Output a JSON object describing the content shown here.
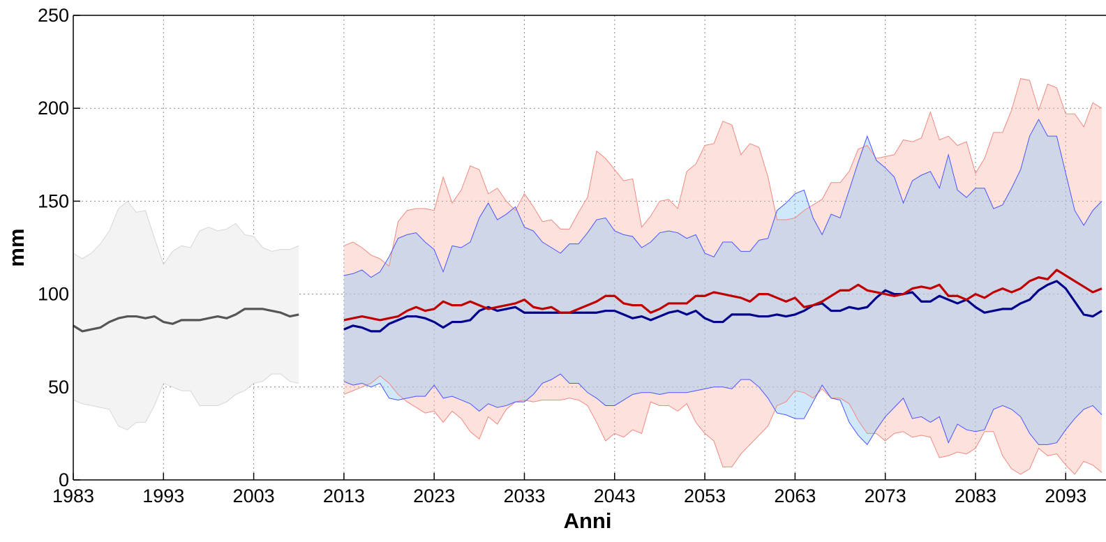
{
  "chart_data": {
    "type": "line",
    "xlabel": "Anni",
    "ylabel": "mm",
    "xlim": [
      1983,
      2097
    ],
    "ylim": [
      0,
      250
    ],
    "xticks": [
      1983,
      1993,
      2003,
      2013,
      2023,
      2033,
      2043,
      2053,
      2063,
      2073,
      2083,
      2093
    ],
    "yticks": [
      0,
      50,
      100,
      150,
      200,
      250
    ],
    "grid": true,
    "series": [
      {
        "color": "#555555",
        "band_color": "#f3f3f3",
        "edge_color": "#d6d6d6",
        "x": [
          1983,
          1984,
          1985,
          1986,
          1987,
          1988,
          1989,
          1990,
          1991,
          1992,
          1993,
          1994,
          1995,
          1996,
          1997,
          1998,
          1999,
          2000,
          2001,
          2002,
          2003,
          2004,
          2005,
          2006,
          2007,
          2008
        ],
        "values": [
          83,
          80,
          81,
          82,
          85,
          87,
          88,
          88,
          87,
          88,
          85,
          84,
          86,
          86,
          86,
          87,
          88,
          87,
          89,
          92,
          92,
          92,
          91,
          90,
          88,
          89
        ],
        "upper": [
          122,
          119,
          122,
          127,
          134,
          146,
          150,
          144,
          145,
          130,
          116,
          123,
          126,
          125,
          134,
          136,
          134,
          135,
          138,
          132,
          131,
          125,
          123,
          124,
          124,
          126
        ],
        "lower": [
          43,
          41,
          40,
          39,
          38,
          29,
          27,
          31,
          31,
          40,
          52,
          50,
          48,
          48,
          40,
          40,
          40,
          42,
          46,
          48,
          52,
          53,
          57,
          57,
          53,
          52
        ]
      },
      {
        "color": "#c00000",
        "band_color": "#f9b8ae",
        "edge_color": "#f08a80",
        "x": [
          2013,
          2014,
          2015,
          2016,
          2017,
          2018,
          2019,
          2020,
          2021,
          2022,
          2023,
          2024,
          2025,
          2026,
          2027,
          2028,
          2029,
          2030,
          2031,
          2032,
          2033,
          2034,
          2035,
          2036,
          2037,
          2038,
          2039,
          2040,
          2041,
          2042,
          2043,
          2044,
          2045,
          2046,
          2047,
          2048,
          2049,
          2050,
          2051,
          2052,
          2053,
          2054,
          2055,
          2056,
          2057,
          2058,
          2059,
          2060,
          2061,
          2062,
          2063,
          2064,
          2065,
          2066,
          2067,
          2068,
          2069,
          2070,
          2071,
          2072,
          2073,
          2074,
          2075,
          2076,
          2077,
          2078,
          2079,
          2080,
          2081,
          2082,
          2083,
          2084,
          2085,
          2086,
          2087,
          2088,
          2089,
          2090,
          2091,
          2092,
          2093,
          2094,
          2095,
          2096,
          2097
        ],
        "values": [
          86,
          87,
          88,
          87,
          86,
          87,
          88,
          91,
          93,
          91,
          92,
          96,
          94,
          94,
          96,
          94,
          92,
          93,
          94,
          95,
          97,
          93,
          92,
          93,
          90,
          90,
          92,
          94,
          96,
          99,
          99,
          95,
          94,
          94,
          90,
          92,
          95,
          95,
          95,
          99,
          99,
          101,
          100,
          99,
          98,
          96,
          100,
          100,
          98,
          96,
          98,
          93,
          94,
          96,
          99,
          102,
          102,
          105,
          102,
          101,
          100,
          99,
          100,
          103,
          104,
          103,
          105,
          99,
          99,
          97,
          100,
          98,
          101,
          103,
          101,
          103,
          107,
          109,
          108,
          113,
          110,
          107,
          104,
          101,
          103
        ],
        "upper": [
          126,
          128,
          125,
          121,
          119,
          115,
          139,
          145,
          146,
          146,
          145,
          163,
          149,
          156,
          169,
          167,
          154,
          157,
          150,
          145,
          154,
          147,
          139,
          140,
          135,
          135,
          144,
          152,
          177,
          173,
          167,
          161,
          162,
          136,
          142,
          150,
          151,
          146,
          166,
          170,
          180,
          181,
          193,
          191,
          175,
          181,
          179,
          163,
          140,
          140,
          141,
          145,
          148,
          151,
          160,
          160,
          166,
          178,
          180,
          173,
          174,
          175,
          183,
          182,
          184,
          198,
          183,
          185,
          180,
          182,
          165,
          173,
          187,
          187,
          199,
          216,
          215,
          199,
          213,
          211,
          197,
          197,
          190,
          203,
          200
        ],
        "lower": [
          46,
          48,
          50,
          52,
          56,
          52,
          46,
          42,
          39,
          36,
          37,
          31,
          37,
          33,
          26,
          22,
          34,
          30,
          38,
          42,
          43,
          42,
          43,
          43,
          43,
          44,
          43,
          40,
          31,
          21,
          25,
          23,
          27,
          25,
          42,
          40,
          40,
          37,
          41,
          31,
          25,
          21,
          7,
          7,
          14,
          19,
          24,
          29,
          40,
          42,
          48,
          47,
          44,
          49,
          44,
          44,
          41,
          32,
          25,
          25,
          21,
          25,
          26,
          23,
          24,
          23,
          12,
          13,
          15,
          14,
          17,
          26,
          26,
          13,
          6,
          3,
          6,
          17,
          13,
          14,
          8,
          3,
          10,
          8,
          4
        ]
      },
      {
        "color": "#00008b",
        "band_color": "#8ec8f5",
        "edge_color": "#4a55ff",
        "x": [
          2013,
          2014,
          2015,
          2016,
          2017,
          2018,
          2019,
          2020,
          2021,
          2022,
          2023,
          2024,
          2025,
          2026,
          2027,
          2028,
          2029,
          2030,
          2031,
          2032,
          2033,
          2034,
          2035,
          2036,
          2037,
          2038,
          2039,
          2040,
          2041,
          2042,
          2043,
          2044,
          2045,
          2046,
          2047,
          2048,
          2049,
          2050,
          2051,
          2052,
          2053,
          2054,
          2055,
          2056,
          2057,
          2058,
          2059,
          2060,
          2061,
          2062,
          2063,
          2064,
          2065,
          2066,
          2067,
          2068,
          2069,
          2070,
          2071,
          2072,
          2073,
          2074,
          2075,
          2076,
          2077,
          2078,
          2079,
          2080,
          2081,
          2082,
          2083,
          2084,
          2085,
          2086,
          2087,
          2088,
          2089,
          2090,
          2091,
          2092,
          2093,
          2094,
          2095,
          2096,
          2097
        ],
        "values": [
          81,
          83,
          82,
          80,
          80,
          84,
          86,
          88,
          88,
          87,
          85,
          82,
          85,
          85,
          86,
          91,
          93,
          91,
          92,
          93,
          90,
          90,
          90,
          90,
          90,
          90,
          90,
          90,
          90,
          91,
          91,
          89,
          87,
          88,
          86,
          88,
          90,
          91,
          89,
          91,
          87,
          85,
          85,
          89,
          89,
          89,
          88,
          88,
          89,
          88,
          89,
          91,
          94,
          95,
          91,
          91,
          93,
          92,
          93,
          98,
          102,
          100,
          100,
          101,
          96,
          96,
          99,
          97,
          95,
          97,
          93,
          90,
          91,
          92,
          92,
          95,
          97,
          102,
          105,
          107,
          103,
          96,
          89,
          88,
          91
        ],
        "upper": [
          110,
          111,
          113,
          109,
          112,
          120,
          130,
          132,
          133,
          128,
          124,
          112,
          126,
          125,
          128,
          141,
          149,
          140,
          143,
          147,
          136,
          134,
          128,
          125,
          122,
          127,
          127,
          133,
          140,
          141,
          134,
          132,
          131,
          125,
          128,
          133,
          134,
          133,
          130,
          132,
          122,
          120,
          128,
          128,
          123,
          123,
          129,
          130,
          145,
          149,
          154,
          156,
          141,
          132,
          143,
          141,
          156,
          171,
          185,
          172,
          168,
          163,
          149,
          161,
          164,
          166,
          157,
          175,
          156,
          152,
          157,
          157,
          146,
          148,
          157,
          167,
          185,
          194,
          185,
          185,
          165,
          145,
          137,
          145,
          150
        ],
        "lower": [
          53,
          51,
          52,
          50,
          52,
          44,
          43,
          44,
          45,
          45,
          51,
          44,
          45,
          43,
          41,
          37,
          41,
          39,
          40,
          42,
          42,
          46,
          52,
          54,
          57,
          52,
          52,
          47,
          44,
          40,
          40,
          43,
          46,
          47,
          47,
          46,
          47,
          47,
          47,
          48,
          49,
          50,
          50,
          49,
          54,
          54,
          50,
          44,
          36,
          35,
          33,
          33,
          42,
          51,
          44,
          43,
          31,
          24,
          19,
          27,
          34,
          39,
          44,
          33,
          34,
          31,
          34,
          20,
          30,
          27,
          26,
          27,
          38,
          40,
          38,
          34,
          25,
          19,
          19,
          20,
          27,
          33,
          38,
          40,
          35
        ]
      }
    ]
  }
}
